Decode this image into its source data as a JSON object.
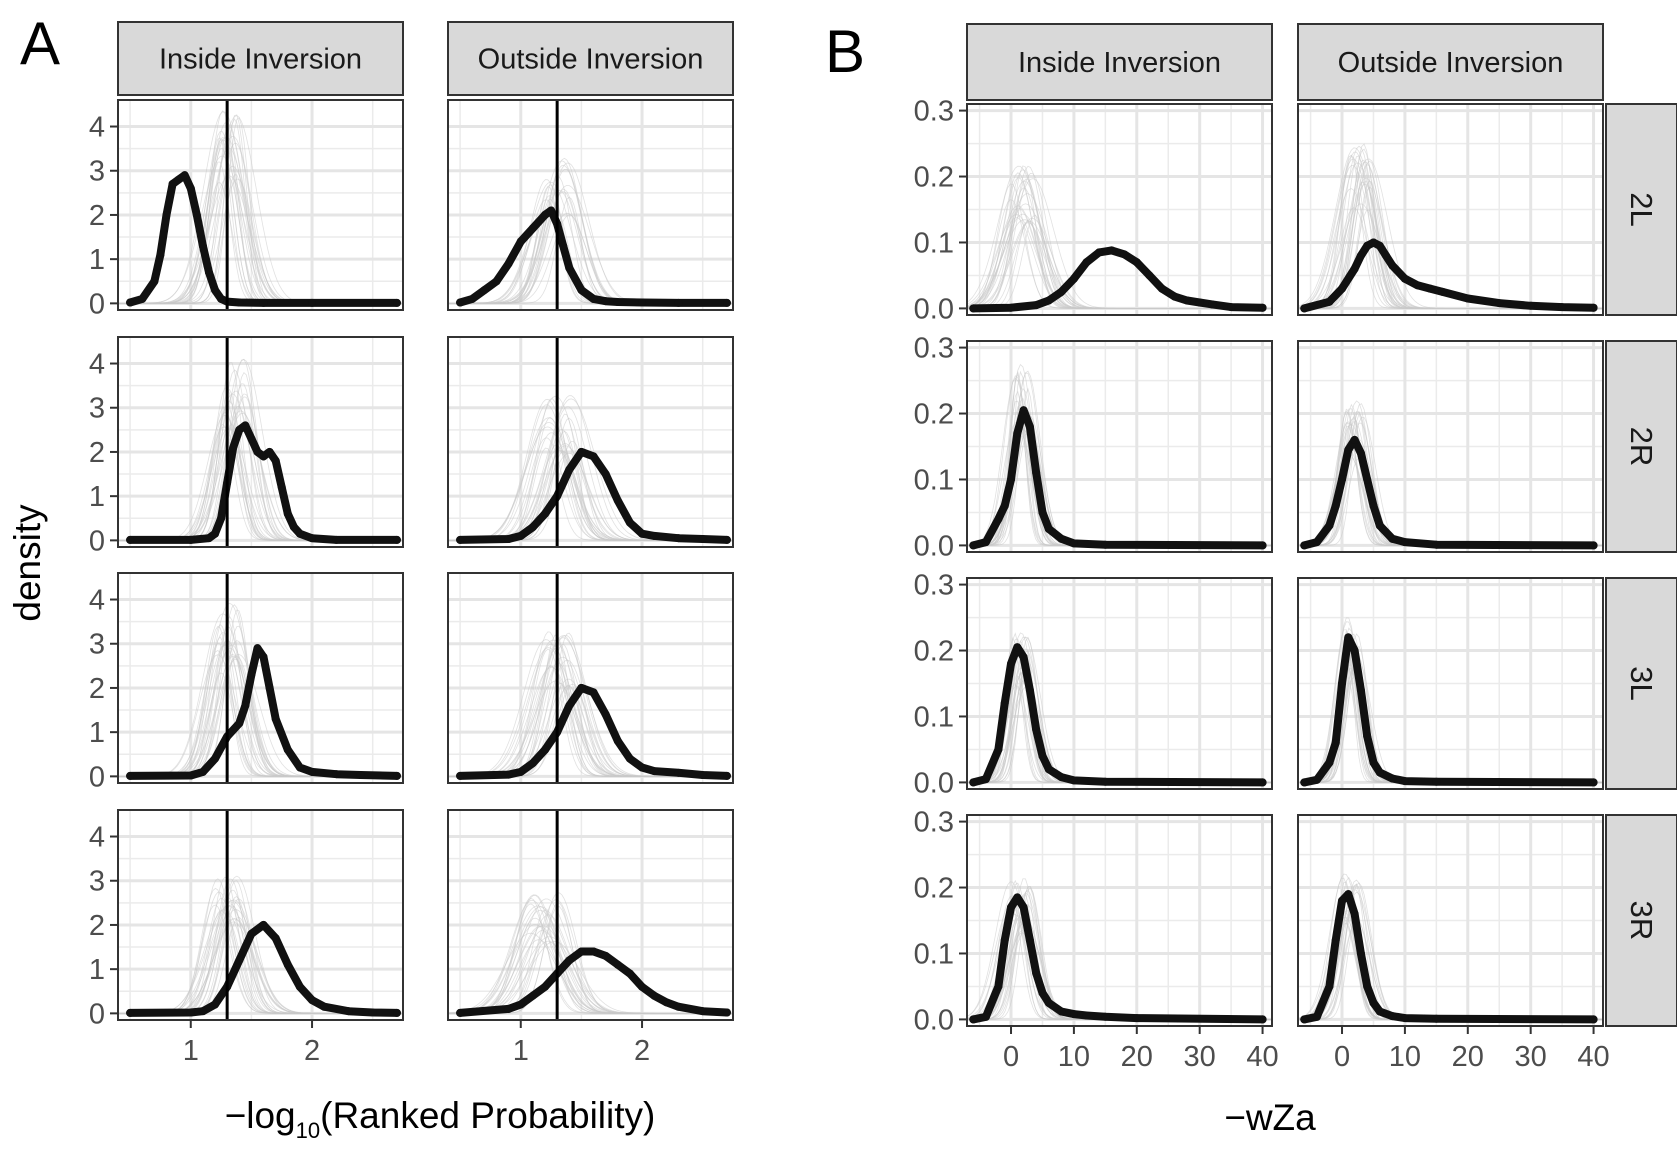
{
  "panels": {
    "A": {
      "letter": "A",
      "columns": [
        "Inside Inversion",
        "Outside Inversion"
      ],
      "y_label": "density",
      "x_label_main": "−log",
      "x_label_sub": "10",
      "x_label_rest": "(Ranked Probability)"
    },
    "B": {
      "letter": "B",
      "columns": [
        "Inside Inversion",
        "Outside Inversion"
      ],
      "rows": [
        "2L",
        "2R",
        "3L",
        "3R"
      ],
      "x_label": "−wZa"
    }
  },
  "chart_data": [
    {
      "type": "line",
      "panel": "A",
      "xlabel": "−log10(Ranked Probability)",
      "ylabel": "density",
      "xlim": [
        0.4,
        2.75
      ],
      "ylim": [
        -0.15,
        4.6
      ],
      "x_ticks": [
        1,
        2
      ],
      "y_ticks": [
        0,
        1,
        2,
        3,
        4
      ],
      "vline_x": 1.3,
      "grid": true,
      "legend": "none",
      "columns": [
        "Inside Inversion",
        "Outside Inversion"
      ],
      "facets": [
        {
          "row": 1,
          "col": "Inside Inversion",
          "series": [
            {
              "x": [
                0.5,
                0.6,
                0.7,
                0.75,
                0.8,
                0.85,
                0.9,
                0.95,
                1.0,
                1.05,
                1.1,
                1.15,
                1.2,
                1.25,
                1.3,
                1.4,
                1.6,
                2.0,
                2.7
              ],
              "y": [
                0.02,
                0.1,
                0.5,
                1.1,
                2.0,
                2.7,
                2.8,
                2.9,
                2.6,
                2.0,
                1.3,
                0.7,
                0.3,
                0.1,
                0.04,
                0.02,
                0.01,
                0.01,
                0.01
              ]
            }
          ],
          "null_peak": {
            "x": 1.3,
            "y": 4.0,
            "sd": 0.12
          }
        },
        {
          "row": 1,
          "col": "Outside Inversion",
          "series": [
            {
              "x": [
                0.5,
                0.6,
                0.7,
                0.8,
                0.9,
                1.0,
                1.1,
                1.2,
                1.25,
                1.3,
                1.35,
                1.4,
                1.5,
                1.6,
                1.7,
                1.8,
                2.0,
                2.3,
                2.7
              ],
              "y": [
                0.02,
                0.1,
                0.3,
                0.5,
                0.9,
                1.4,
                1.7,
                2.0,
                2.1,
                1.8,
                1.3,
                0.8,
                0.3,
                0.1,
                0.05,
                0.03,
                0.02,
                0.01,
                0.01
              ]
            }
          ],
          "null_peak": {
            "x": 1.3,
            "y": 3.0,
            "sd": 0.13
          }
        },
        {
          "row": 2,
          "col": "Inside Inversion",
          "series": [
            {
              "x": [
                0.5,
                1.0,
                1.15,
                1.2,
                1.25,
                1.3,
                1.35,
                1.4,
                1.45,
                1.5,
                1.55,
                1.6,
                1.65,
                1.7,
                1.75,
                1.8,
                1.85,
                1.9,
                2.0,
                2.2,
                2.7
              ],
              "y": [
                0.01,
                0.01,
                0.05,
                0.15,
                0.5,
                1.3,
                2.1,
                2.5,
                2.6,
                2.3,
                2.0,
                1.9,
                2.0,
                1.8,
                1.2,
                0.6,
                0.3,
                0.15,
                0.05,
                0.01,
                0.01
              ]
            }
          ],
          "null_peak": {
            "x": 1.35,
            "y": 3.8,
            "sd": 0.12
          }
        },
        {
          "row": 2,
          "col": "Outside Inversion",
          "series": [
            {
              "x": [
                0.5,
                0.9,
                1.0,
                1.1,
                1.2,
                1.3,
                1.4,
                1.5,
                1.6,
                1.7,
                1.8,
                1.9,
                2.0,
                2.1,
                2.3,
                2.5,
                2.7
              ],
              "y": [
                0.01,
                0.03,
                0.1,
                0.3,
                0.6,
                1.0,
                1.6,
                2.0,
                1.9,
                1.5,
                0.9,
                0.4,
                0.15,
                0.1,
                0.05,
                0.03,
                0.01
              ]
            }
          ],
          "null_peak": {
            "x": 1.32,
            "y": 3.0,
            "sd": 0.14
          }
        },
        {
          "row": 3,
          "col": "Inside Inversion",
          "series": [
            {
              "x": [
                0.5,
                1.0,
                1.1,
                1.2,
                1.3,
                1.4,
                1.45,
                1.5,
                1.55,
                1.6,
                1.65,
                1.7,
                1.8,
                1.9,
                2.0,
                2.2,
                2.4,
                2.7
              ],
              "y": [
                0.01,
                0.02,
                0.1,
                0.4,
                0.9,
                1.2,
                1.6,
                2.3,
                2.9,
                2.7,
                2.0,
                1.3,
                0.6,
                0.2,
                0.1,
                0.05,
                0.03,
                0.01
              ]
            }
          ],
          "null_peak": {
            "x": 1.3,
            "y": 3.6,
            "sd": 0.12
          }
        },
        {
          "row": 3,
          "col": "Outside Inversion",
          "series": [
            {
              "x": [
                0.5,
                0.9,
                1.0,
                1.1,
                1.2,
                1.3,
                1.4,
                1.5,
                1.6,
                1.7,
                1.8,
                1.9,
                2.0,
                2.1,
                2.3,
                2.5,
                2.7
              ],
              "y": [
                0.01,
                0.04,
                0.1,
                0.3,
                0.6,
                1.0,
                1.6,
                2.0,
                1.9,
                1.4,
                0.8,
                0.4,
                0.2,
                0.12,
                0.08,
                0.03,
                0.01
              ]
            }
          ],
          "null_peak": {
            "x": 1.32,
            "y": 3.0,
            "sd": 0.14
          }
        },
        {
          "row": 4,
          "col": "Inside Inversion",
          "series": [
            {
              "x": [
                0.5,
                1.0,
                1.1,
                1.2,
                1.3,
                1.4,
                1.5,
                1.6,
                1.7,
                1.8,
                1.9,
                2.0,
                2.1,
                2.3,
                2.5,
                2.7
              ],
              "y": [
                0.01,
                0.02,
                0.05,
                0.2,
                0.6,
                1.2,
                1.8,
                2.0,
                1.7,
                1.1,
                0.6,
                0.3,
                0.15,
                0.05,
                0.02,
                0.01
              ]
            }
          ],
          "null_peak": {
            "x": 1.3,
            "y": 2.9,
            "sd": 0.13
          }
        },
        {
          "row": 4,
          "col": "Outside Inversion",
          "series": [
            {
              "x": [
                0.5,
                0.9,
                1.0,
                1.1,
                1.2,
                1.3,
                1.4,
                1.5,
                1.6,
                1.7,
                1.8,
                1.9,
                2.0,
                2.1,
                2.2,
                2.3,
                2.5,
                2.7
              ],
              "y": [
                0.01,
                0.1,
                0.2,
                0.4,
                0.6,
                0.9,
                1.2,
                1.4,
                1.4,
                1.3,
                1.1,
                0.9,
                0.6,
                0.4,
                0.25,
                0.15,
                0.05,
                0.02
              ]
            }
          ],
          "null_peak": {
            "x": 1.2,
            "y": 2.5,
            "sd": 0.15
          }
        }
      ]
    },
    {
      "type": "line",
      "panel": "B",
      "xlabel": "−wZa",
      "ylabel": "density",
      "xlim": [
        -7,
        41.5
      ],
      "ylim": [
        -0.01,
        0.31
      ],
      "x_ticks": [
        0,
        10,
        20,
        30,
        40
      ],
      "y_ticks": [
        0.0,
        0.1,
        0.2,
        0.3
      ],
      "grid": true,
      "legend": "none",
      "columns": [
        "Inside Inversion",
        "Outside Inversion"
      ],
      "rows": [
        "2L",
        "2R",
        "3L",
        "3R"
      ],
      "facets": [
        {
          "row": "2L",
          "col": "Inside Inversion",
          "series": [
            {
              "x": [
                -6,
                0,
                4,
                6,
                8,
                10,
                12,
                14,
                16,
                18,
                20,
                22,
                24,
                26,
                28,
                30,
                32,
                35,
                40
              ],
              "y": [
                0,
                0.001,
                0.005,
                0.012,
                0.025,
                0.045,
                0.07,
                0.085,
                0.088,
                0.082,
                0.07,
                0.05,
                0.03,
                0.018,
                0.012,
                0.009,
                0.006,
                0.002,
                0.001
              ]
            }
          ],
          "null_peak": {
            "x": 2,
            "y": 0.2,
            "sd": 2.5
          }
        },
        {
          "row": "2L",
          "col": "Outside Inversion",
          "series": [
            {
              "x": [
                -6,
                -2,
                0,
                2,
                3,
                4,
                5,
                6,
                7,
                8,
                10,
                12,
                14,
                16,
                20,
                25,
                30,
                35,
                40
              ],
              "y": [
                0,
                0.01,
                0.03,
                0.06,
                0.08,
                0.095,
                0.1,
                0.095,
                0.08,
                0.065,
                0.045,
                0.035,
                0.03,
                0.025,
                0.015,
                0.008,
                0.004,
                0.002,
                0.001
              ]
            }
          ],
          "null_peak": {
            "x": 3,
            "y": 0.23,
            "sd": 2.2
          }
        },
        {
          "row": "2R",
          "col": "Inside Inversion",
          "series": [
            {
              "x": [
                -6,
                -4,
                -2,
                -1,
                0,
                1,
                2,
                3,
                4,
                5,
                6,
                8,
                10,
                15,
                40
              ],
              "y": [
                0,
                0.005,
                0.04,
                0.06,
                0.1,
                0.17,
                0.205,
                0.18,
                0.11,
                0.05,
                0.025,
                0.01,
                0.003,
                0.001,
                0
              ]
            }
          ],
          "null_peak": {
            "x": 2,
            "y": 0.25,
            "sd": 1.6
          }
        },
        {
          "row": "2R",
          "col": "Outside Inversion",
          "series": [
            {
              "x": [
                -6,
                -4,
                -2,
                -1,
                0,
                1,
                2,
                3,
                4,
                5,
                6,
                8,
                10,
                15,
                40
              ],
              "y": [
                0,
                0.005,
                0.03,
                0.06,
                0.1,
                0.145,
                0.16,
                0.14,
                0.1,
                0.06,
                0.03,
                0.01,
                0.005,
                0.001,
                0
              ]
            }
          ],
          "null_peak": {
            "x": 2,
            "y": 0.2,
            "sd": 1.7
          }
        },
        {
          "row": "3L",
          "col": "Inside Inversion",
          "series": [
            {
              "x": [
                -6,
                -4,
                -2,
                -1,
                0,
                1,
                2,
                3,
                4,
                5,
                6,
                8,
                10,
                15,
                40
              ],
              "y": [
                0,
                0.005,
                0.05,
                0.12,
                0.18,
                0.205,
                0.19,
                0.14,
                0.08,
                0.04,
                0.02,
                0.008,
                0.003,
                0.001,
                0
              ]
            }
          ],
          "null_peak": {
            "x": 1.5,
            "y": 0.22,
            "sd": 1.6
          }
        },
        {
          "row": "3L",
          "col": "Outside Inversion",
          "series": [
            {
              "x": [
                -6,
                -4,
                -2,
                -1,
                0,
                1,
                2,
                3,
                4,
                5,
                6,
                8,
                10,
                15,
                40
              ],
              "y": [
                0,
                0.004,
                0.03,
                0.06,
                0.15,
                0.22,
                0.2,
                0.14,
                0.07,
                0.03,
                0.015,
                0.006,
                0.002,
                0.001,
                0
              ]
            }
          ],
          "null_peak": {
            "x": 1.5,
            "y": 0.23,
            "sd": 1.5
          }
        },
        {
          "row": "3R",
          "col": "Inside Inversion",
          "series": [
            {
              "x": [
                -6,
                -4,
                -2,
                -1,
                0,
                1,
                2,
                3,
                4,
                5,
                6,
                8,
                10,
                12,
                15,
                20,
                40
              ],
              "y": [
                0,
                0.004,
                0.05,
                0.12,
                0.17,
                0.185,
                0.17,
                0.12,
                0.07,
                0.04,
                0.025,
                0.012,
                0.008,
                0.006,
                0.004,
                0.002,
                0
              ]
            }
          ],
          "null_peak": {
            "x": 1.5,
            "y": 0.2,
            "sd": 1.9
          }
        },
        {
          "row": "3R",
          "col": "Outside Inversion",
          "series": [
            {
              "x": [
                -6,
                -4,
                -2,
                -1,
                0,
                1,
                2,
                3,
                4,
                5,
                6,
                8,
                10,
                15,
                40
              ],
              "y": [
                0,
                0.004,
                0.05,
                0.12,
                0.18,
                0.19,
                0.16,
                0.1,
                0.05,
                0.025,
                0.012,
                0.005,
                0.002,
                0.001,
                0
              ]
            }
          ],
          "null_peak": {
            "x": 1.5,
            "y": 0.21,
            "sd": 1.8
          }
        }
      ]
    }
  ]
}
